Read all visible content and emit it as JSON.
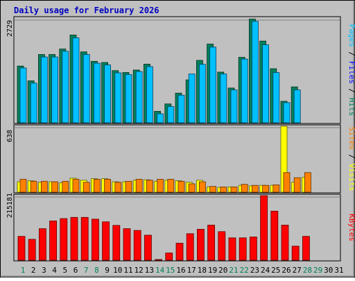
{
  "title": "Daily usage for February 2026",
  "colors": {
    "hits": "#00805c",
    "files": "#0000ff",
    "pages": "#00c0ff",
    "visits": "#ffff00",
    "sites": "#ff8000",
    "kbytes": "#ff0000",
    "weekday_label": "#000000",
    "weekend_label": "#00805c"
  },
  "chart_data": [
    {
      "type": "bar",
      "title": "Daily usage for February 2026",
      "ylabel_parts": [
        "Pages",
        "Files",
        "Hits"
      ],
      "ymax_label": "2729",
      "ylim": [
        0,
        2729
      ],
      "x": [
        "1",
        "2",
        "3",
        "4",
        "5",
        "6",
        "7",
        "8",
        "9",
        "10",
        "11",
        "12",
        "13",
        "14",
        "15",
        "16",
        "17",
        "18",
        "19",
        "20",
        "21",
        "22",
        "23",
        "24",
        "25",
        "26",
        "27",
        "28",
        "29",
        "30",
        "31"
      ],
      "series": [
        {
          "name": "Hits",
          "values": [
            1480,
            1090,
            1785,
            1785,
            1930,
            2300,
            1855,
            1605,
            1575,
            1360,
            1310,
            1375,
            1530,
            285,
            480,
            765,
            1115,
            1630,
            2060,
            1320,
            900,
            1710,
            2720,
            2140,
            1410,
            550,
            930,
            null,
            null,
            null,
            null
          ]
        },
        {
          "name": "Pages",
          "values": [
            1430,
            1030,
            1720,
            1720,
            1870,
            2225,
            1785,
            1555,
            1510,
            1300,
            1255,
            1335,
            1465,
            220,
            410,
            710,
            1270,
            1525,
            1980,
            1270,
            850,
            1665,
            2660,
            2040,
            1310,
            515,
            850,
            null,
            null,
            null,
            null
          ]
        }
      ]
    },
    {
      "type": "bar",
      "ylabel_parts": [
        "Sites",
        "Visits"
      ],
      "ymax_label": "638",
      "ylim": [
        0,
        638
      ],
      "x": [
        "1",
        "2",
        "3",
        "4",
        "5",
        "6",
        "7",
        "8",
        "9",
        "10",
        "11",
        "12",
        "13",
        "14",
        "15",
        "16",
        "17",
        "18",
        "19",
        "20",
        "21",
        "22",
        "23",
        "24",
        "25",
        "26",
        "27",
        "28",
        "29",
        "30",
        "31"
      ],
      "series": [
        {
          "name": "Visits",
          "values": [
            95,
            105,
            90,
            95,
            85,
            130,
            110,
            125,
            125,
            95,
            95,
            110,
            115,
            100,
            110,
            105,
            90,
            110,
            45,
            40,
            45,
            60,
            55,
            60,
            60,
            638,
            90,
            140,
            null,
            null,
            null
          ]
        },
        {
          "name": "Sites",
          "values": [
            120,
            100,
            100,
            95,
            100,
            120,
            90,
            120,
            120,
            90,
            100,
            120,
            110,
            120,
            120,
            100,
            75,
            95,
            50,
            45,
            45,
            70,
            60,
            60,
            65,
            185,
            135,
            185,
            null,
            null,
            null
          ]
        }
      ]
    },
    {
      "type": "bar",
      "ylabel_parts": [
        "KBytes"
      ],
      "ymax_label": "215181",
      "ylim": [
        0,
        215181
      ],
      "x": [
        "1",
        "2",
        "3",
        "4",
        "5",
        "6",
        "7",
        "8",
        "9",
        "10",
        "11",
        "12",
        "13",
        "14",
        "15",
        "16",
        "17",
        "18",
        "19",
        "20",
        "21",
        "22",
        "23",
        "24",
        "25",
        "26",
        "27",
        "28",
        "29",
        "30",
        "31"
      ],
      "series": [
        {
          "name": "KBytes",
          "values": [
            78000,
            68000,
            104000,
            130000,
            138000,
            142000,
            142000,
            136000,
            127000,
            115000,
            104000,
            98000,
            82000,
            0,
            22000,
            55000,
            87000,
            102000,
            116000,
            94000,
            73000,
            73000,
            76000,
            215181,
            163000,
            116000,
            45000,
            78000,
            null,
            null,
            null
          ]
        }
      ]
    }
  ]
}
